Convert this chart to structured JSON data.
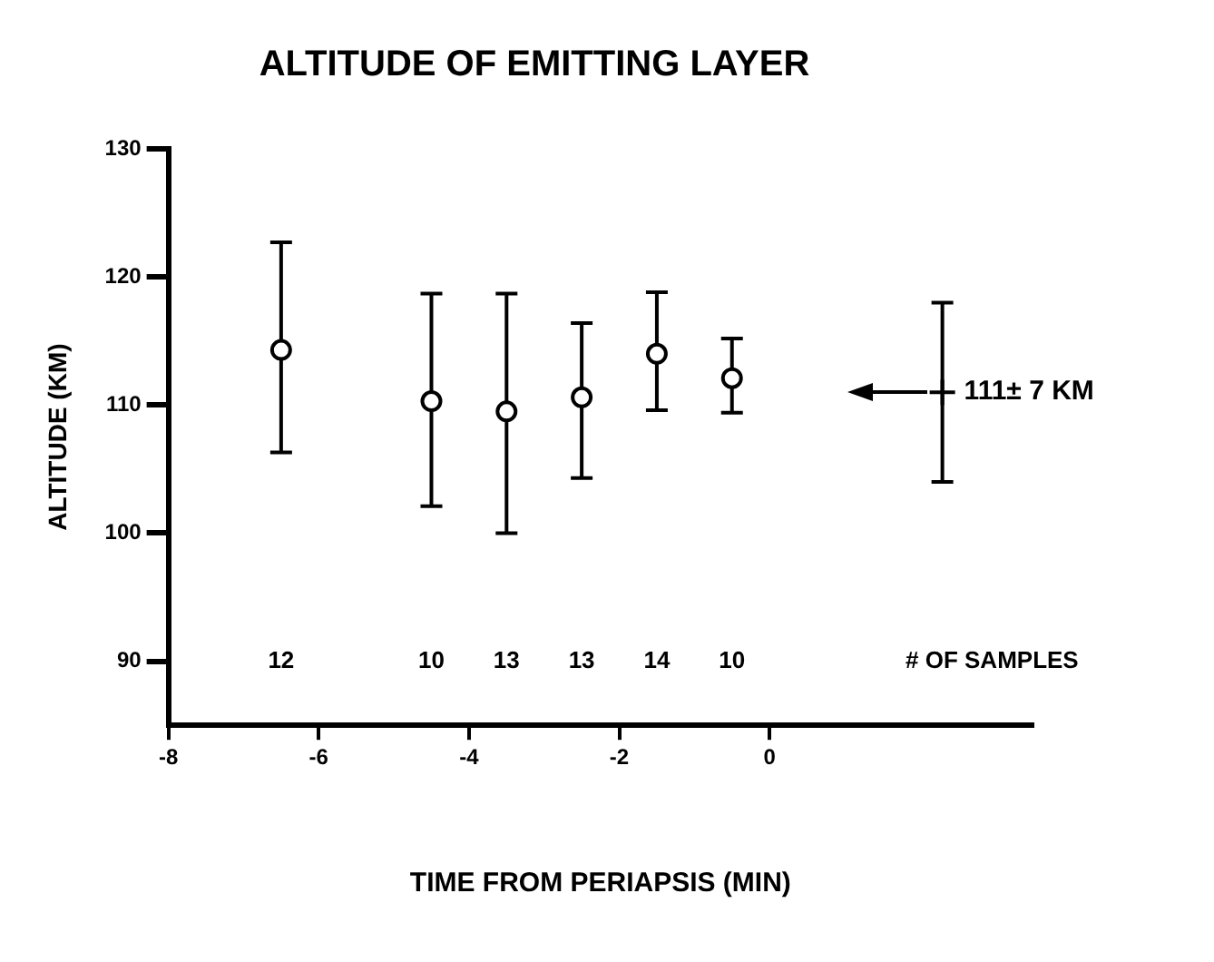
{
  "chart_data": {
    "type": "scatter",
    "title": "ALTITUDE OF EMITTING LAYER",
    "xlabel": "TIME FROM PERIAPSIS (MIN)",
    "ylabel": "ALTITUDE (KM)",
    "xlim": [
      -8,
      3.5
    ],
    "xticks": [
      -8,
      -6,
      -4,
      -2,
      0
    ],
    "ylim": [
      85,
      130
    ],
    "yticks": [
      90,
      100,
      110,
      120,
      130
    ],
    "grid": false,
    "legend": false,
    "marker": "circle",
    "series": [
      {
        "color": "#000000",
        "x": [
          -6.5,
          -4.5,
          -3.5,
          -2.5,
          -1.5,
          -0.5
        ],
        "values": [
          114.3,
          110.3,
          109.5,
          110.6,
          114.0,
          112.1
        ],
        "errors": [
          [
            106.3,
            122.7
          ],
          [
            102.1,
            118.7
          ],
          [
            100.0,
            118.7
          ],
          [
            104.3,
            116.4
          ],
          [
            109.6,
            118.8
          ],
          [
            109.4,
            115.2
          ]
        ]
      },
      {
        "color": "#000000",
        "marker": "cross",
        "x": [
          2.3
        ],
        "values": [
          111
        ],
        "errors": [
          7
        ]
      }
    ],
    "annotations": [
      {
        "text": "111± 7 KM",
        "x": 2.3,
        "y": 111
      },
      "12",
      "10",
      "13",
      "13",
      "14",
      "10",
      "# OF SAMPLES"
    ]
  }
}
